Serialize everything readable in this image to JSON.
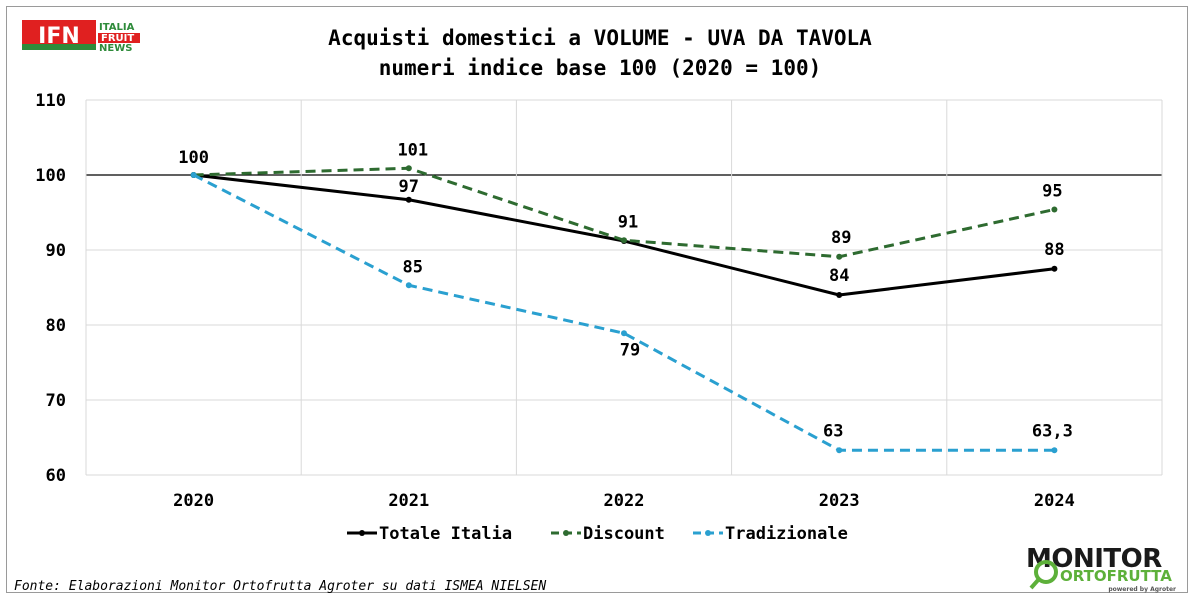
{
  "logo_ifn": {
    "mark": "IFN",
    "lines": [
      "ITALIA",
      "FRUIT",
      "NEWS"
    ]
  },
  "logo_monitor": {
    "word1": "MONITOR",
    "word2": "ORTOFRUTTA",
    "powered": "powered by Agroter"
  },
  "source": "Fonte: Elaborazioni Monitor Ortofrutta Agroter su dati ISMEA NIELSEN",
  "colors": {
    "totale": "#000000",
    "discount": "#2e6b30",
    "tradizionale": "#2aa0d0",
    "grid": "#d9d9d9",
    "baseline": "#000000"
  },
  "chart_data": {
    "type": "line",
    "title": "Acquisti domestici a VOLUME - UVA DA TAVOLA",
    "subtitle": "numeri indice base 100 (2020 = 100)",
    "categories": [
      "2020",
      "2021",
      "2022",
      "2023",
      "2024"
    ],
    "ylim": [
      60,
      110
    ],
    "yticks": [
      "60",
      "70",
      "80",
      "90",
      "100",
      "110"
    ],
    "grid": true,
    "legend_position": "bottom",
    "series": [
      {
        "name": "Totale Italia",
        "values": [
          100,
          96.7,
          91.2,
          84.0,
          87.5
        ],
        "labels": [
          "",
          "97",
          "",
          "84",
          "88"
        ],
        "style": "solid"
      },
      {
        "name": "Discount",
        "values": [
          100,
          100.9,
          91.3,
          89.1,
          95.4
        ],
        "labels": [
          "100",
          "101",
          "91",
          "89",
          "95"
        ],
        "style": "dashed"
      },
      {
        "name": "Tradizionale",
        "values": [
          100,
          85.3,
          78.9,
          63.3,
          63.3
        ],
        "labels": [
          "",
          "85",
          "79",
          "63",
          "63,3"
        ],
        "style": "dashed"
      }
    ]
  }
}
